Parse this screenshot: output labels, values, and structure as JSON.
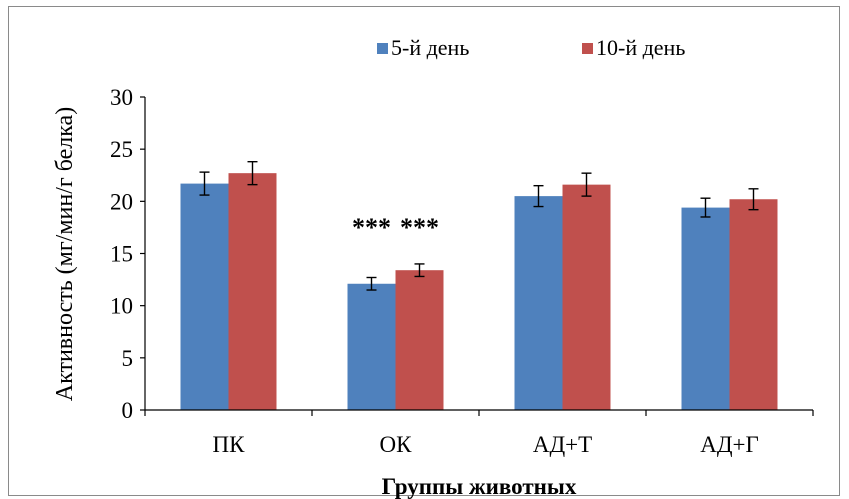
{
  "chart_data": {
    "type": "bar",
    "title": "",
    "xlabel": "Группы животных",
    "ylabel": "Активность  (мг/мин/г белка)",
    "categories": [
      "ПК",
      "ОК",
      "АД+Т",
      "АД+Г"
    ],
    "series": [
      {
        "name": "5-й день",
        "color": "#4F81BD",
        "values": [
          21.7,
          12.1,
          20.5,
          19.4
        ],
        "errors": [
          1.1,
          0.6,
          1.0,
          0.9
        ]
      },
      {
        "name": "10-й день",
        "color": "#C0504D",
        "values": [
          22.7,
          13.4,
          21.6,
          20.2
        ],
        "errors": [
          1.1,
          0.6,
          1.1,
          1.0
        ]
      }
    ],
    "annotations": [
      {
        "category": "ОК",
        "series": "5-й день",
        "text": "***"
      },
      {
        "category": "ОК",
        "series": "10-й день",
        "text": "***"
      }
    ],
    "ylim": [
      0,
      30
    ],
    "yticks": [
      0,
      5,
      10,
      15,
      20,
      25,
      30
    ],
    "grid": false,
    "legend_position": "top-right"
  }
}
